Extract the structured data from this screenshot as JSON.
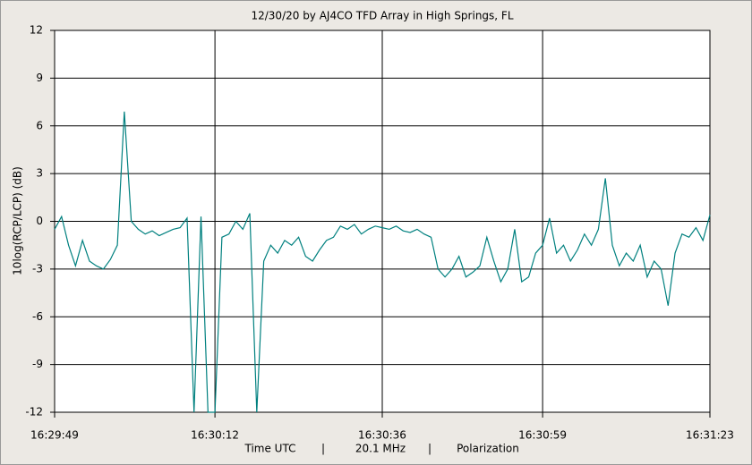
{
  "chart_data": {
    "type": "line",
    "title": "12/30/20  by  AJ4CO TFD Array  in  High Springs, FL",
    "ylabel": "10log(RCP/LCP) (dB)",
    "footer": [
      "Time UTC",
      "|",
      "20.1 MHz",
      "|",
      "Polarization"
    ],
    "color": "#00807f",
    "grid": true,
    "x": [
      59389,
      59390,
      59391,
      59392,
      59393,
      59394,
      59395,
      59396,
      59397,
      59398,
      59399,
      59400,
      59401,
      59402,
      59403,
      59404,
      59405,
      59406,
      59407,
      59408,
      59409,
      59410,
      59411,
      59412,
      59413,
      59414,
      59415,
      59416,
      59417,
      59418,
      59419,
      59420,
      59421,
      59422,
      59423,
      59424,
      59425,
      59426,
      59427,
      59428,
      59429,
      59430,
      59431,
      59432,
      59433,
      59434,
      59435,
      59436,
      59437,
      59438,
      59439,
      59440,
      59441,
      59442,
      59443,
      59444,
      59445,
      59446,
      59447,
      59448,
      59449,
      59450,
      59451,
      59452,
      59453,
      59454,
      59455,
      59456,
      59457,
      59458,
      59459,
      59460,
      59461,
      59462,
      59463,
      59464,
      59465,
      59466,
      59467,
      59468,
      59469,
      59470,
      59471,
      59472,
      59473,
      59474,
      59475,
      59476,
      59477,
      59478,
      59479,
      59480,
      59481,
      59482,
      59483
    ],
    "values": [
      -0.5,
      0.3,
      -1.5,
      -2.8,
      -1.2,
      -2.5,
      -2.8,
      -3,
      -2.4,
      -1.5,
      6.9,
      0,
      -0.5,
      -0.8,
      -0.6,
      -0.9,
      -0.7,
      -0.5,
      -0.4,
      0.2,
      -12,
      0.3,
      -12,
      -12,
      -1,
      -0.8,
      0,
      -0.5,
      0.5,
      -12,
      -2.5,
      -1.5,
      -2,
      -1.2,
      -1.5,
      -1,
      -2.2,
      -2.5,
      -1.8,
      -1.2,
      -1,
      -0.3,
      -0.5,
      -0.2,
      -0.8,
      -0.5,
      -0.3,
      -0.4,
      -0.5,
      -0.3,
      -0.6,
      -0.7,
      -0.5,
      -0.8,
      -1,
      -3,
      -3.5,
      -3,
      -2.2,
      -3.5,
      -3.2,
      -2.8,
      -1,
      -2.5,
      -3.8,
      -3,
      -0.5,
      -3.8,
      -3.5,
      -2,
      -1.5,
      0.2,
      -2,
      -1.5,
      -2.5,
      -1.8,
      -0.8,
      -1.5,
      -0.5,
      2.7,
      -1.5,
      -2.8,
      -2,
      -2.5,
      -1.5,
      -3.5,
      -2.5,
      -3,
      -5.3,
      -2,
      -0.8,
      -1,
      -0.4,
      -1.2,
      0.4
    ],
    "xlim": [
      59389,
      59483
    ],
    "xticks": [
      {
        "value": 59389,
        "label": "16:29:49"
      },
      {
        "value": 59412,
        "label": "16:30:12"
      },
      {
        "value": 59436,
        "label": "16:30:36"
      },
      {
        "value": 59459,
        "label": "16:30:59"
      },
      {
        "value": 59483,
        "label": "16:31:23"
      }
    ],
    "ylim": [
      -12,
      12
    ],
    "yticks": [
      -12,
      -9,
      -6,
      -3,
      0,
      3,
      6,
      9,
      12
    ]
  }
}
